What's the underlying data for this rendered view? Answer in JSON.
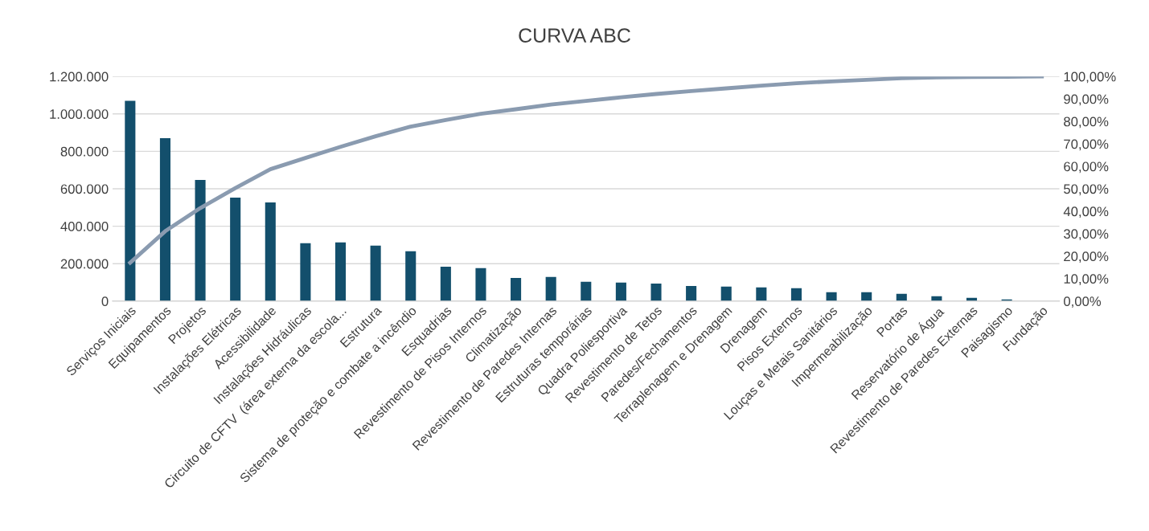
{
  "chart_data": {
    "type": "bar",
    "title": "CURVA ABC",
    "categories": [
      "Serviços Iniciais",
      "Equipamentos",
      "Projetos",
      "Instalações Elétricas",
      "Acessibilidade",
      "Instalações Hidráulicas",
      "Circuito de CFTV  (área externa da escola...",
      "Estrutura",
      "Sistema de proteção e combate a incêndio",
      "Esquadrias",
      "Revestimento de Pisos Internos",
      "Climatização",
      "Revestimento de Paredes Internas",
      "Estruturas temporárias",
      "Quadra Poliesportiva",
      "Revestimento de Tetos",
      "Paredes/Fechamentos",
      "Terraplenagem e Drenagem",
      "Drenagem",
      "Pisos Externos",
      "Louças e Metais Sanitários",
      "Impermeabilização",
      "Portas",
      "Reservatório de Água",
      "Revestimento de Paredes Externas",
      "Paisagismo",
      "Fundação"
    ],
    "series": [
      {
        "color": "#134f6c",
        "values": [
          1070000,
          870000,
          647000,
          553000,
          527000,
          309000,
          313000,
          296000,
          266000,
          184000,
          176000,
          124000,
          129000,
          103000,
          99000,
          94000,
          81000,
          77000,
          73000,
          69000,
          47000,
          47000,
          39000,
          26000,
          17000,
          9000,
          null
        ]
      },
      {
        "type": "line",
        "axis": "y2",
        "color": "#8a9bb0",
        "values": [
          17.1,
          31.1,
          41.4,
          50.3,
          58.7,
          63.7,
          68.7,
          73.4,
          77.7,
          80.6,
          83.4,
          85.4,
          87.5,
          89.1,
          90.7,
          92.2,
          93.5,
          94.7,
          95.9,
          97.0,
          97.8,
          98.5,
          99.2,
          99.6,
          99.8,
          99.9,
          100
        ]
      }
    ],
    "ylim": [
      0,
      1200000
    ],
    "yticks": [
      {
        "value": 0,
        "label": "0"
      },
      {
        "value": 200000,
        "label": "200.000"
      },
      {
        "value": 400000,
        "label": "400.000"
      },
      {
        "value": 600000,
        "label": "600.000"
      },
      {
        "value": 800000,
        "label": "800.000"
      },
      {
        "value": 1000000,
        "label": "1.000.000"
      },
      {
        "value": 1200000,
        "label": "1.200.000"
      }
    ],
    "y2lim": [
      0,
      100
    ],
    "y2ticks": [
      {
        "value": 0,
        "label": "0,00%"
      },
      {
        "value": 10,
        "label": "10,00%"
      },
      {
        "value": 20,
        "label": "20,00%"
      },
      {
        "value": 30,
        "label": "30,00%"
      },
      {
        "value": 40,
        "label": "40,00%"
      },
      {
        "value": 50,
        "label": "50,00%"
      },
      {
        "value": 60,
        "label": "60,00%"
      },
      {
        "value": 70,
        "label": "70,00%"
      },
      {
        "value": 80,
        "label": "80,00%"
      },
      {
        "value": 90,
        "label": "90,00%"
      },
      {
        "value": 100,
        "label": "100,00%"
      }
    ],
    "grid": "y",
    "marker": "none",
    "line_style": "solid"
  }
}
